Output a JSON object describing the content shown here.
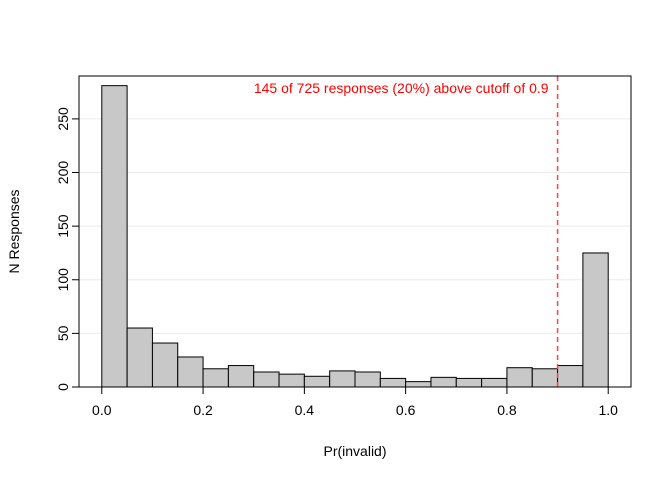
{
  "chart_data": {
    "type": "bar",
    "subtype": "histogram",
    "xlabel": "Pr(invalid)",
    "ylabel": "N Responses",
    "xlim": [
      -0.045,
      1.045
    ],
    "ylim": [
      0,
      290
    ],
    "bin_edges": [
      0,
      0.05,
      0.1,
      0.15,
      0.2,
      0.25,
      0.3,
      0.35,
      0.4,
      0.45,
      0.5,
      0.55,
      0.6,
      0.65,
      0.7,
      0.75,
      0.8,
      0.85,
      0.9,
      0.95,
      1.0
    ],
    "values": [
      281,
      55,
      41,
      28,
      17,
      20,
      14,
      12,
      10,
      15,
      14,
      8,
      5,
      9,
      8,
      8,
      18,
      17,
      20,
      125
    ],
    "x_ticks": [
      0.0,
      0.2,
      0.4,
      0.6,
      0.8,
      1.0
    ],
    "x_tick_labels": [
      "0.0",
      "0.2",
      "0.4",
      "0.6",
      "0.8",
      "1.0"
    ],
    "y_ticks": [
      0,
      50,
      100,
      150,
      200,
      250
    ],
    "y_tick_labels": [
      "0",
      "50",
      "100",
      "150",
      "200",
      "250"
    ],
    "grid": "horizontal",
    "cutoff": 0.9,
    "annotation": "145 of 725 responses (20%) above cutoff of 0.9",
    "colors": {
      "bar_fill": "#c8c8c8",
      "bar_stroke": "#000000",
      "cutoff_line": "#ff4444",
      "annotation": "#ff0000",
      "grid": "#ebebeb"
    }
  }
}
